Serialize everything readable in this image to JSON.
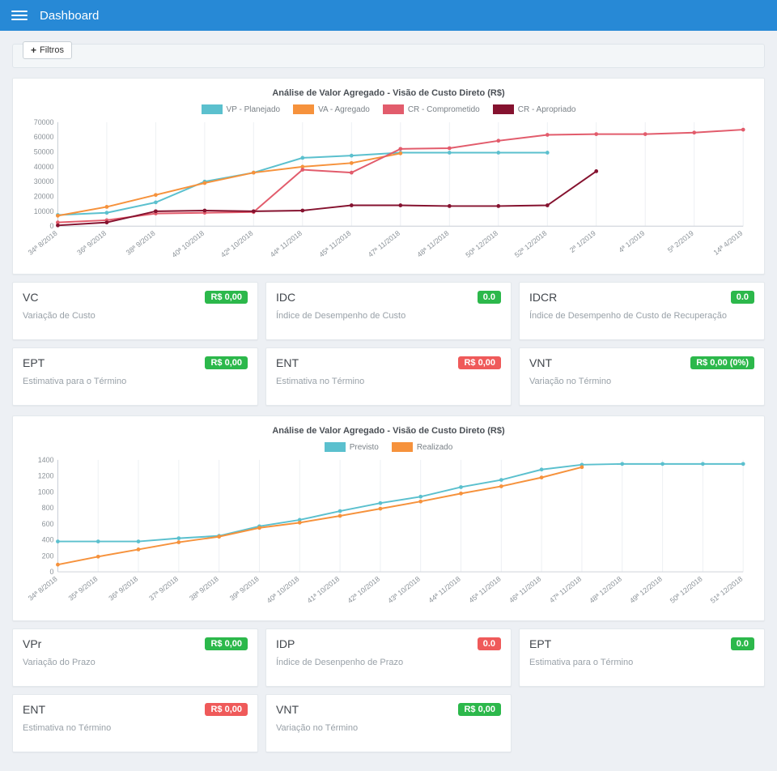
{
  "navbar": {
    "title": "Dashboard"
  },
  "filters": {
    "plus_icon": "+",
    "label": "Filtros"
  },
  "colors": {
    "navbar_blue": "#2789d6",
    "badge_green": "#2cb84b",
    "badge_red": "#ef5a5a"
  },
  "chart_data": [
    {
      "type": "line",
      "title": "Análise de Valor Agregado - Visão de Custo Direto (R$)",
      "xlabel": "",
      "ylabel": "",
      "ylim": [
        0,
        70000
      ],
      "ytick_step": 10000,
      "grid": "vertical",
      "legend_position": "top",
      "categories": [
        "34ª 8/2018",
        "36ª 9/2018",
        "38ª 9/2018",
        "40ª 10/2018",
        "42ª 10/2018",
        "44ª 11/2018",
        "45ª 11/2018",
        "47ª 11/2018",
        "48ª 11/2018",
        "50ª 12/2018",
        "52ª 12/2018",
        "2ª 1/2019",
        "4ª 1/2019",
        "5ª 2/2019",
        "14ª 4/2019"
      ],
      "series": [
        {
          "name": "VP - Planejado",
          "color": "#5bc0ce",
          "values": [
            7500,
            9000,
            16000,
            30000,
            36000,
            46000,
            47500,
            49500,
            49500,
            49500,
            49500,
            null,
            null,
            null,
            null
          ]
        },
        {
          "name": "VA - Agregado",
          "color": "#f6923c",
          "values": [
            7000,
            13000,
            21000,
            29000,
            36000,
            40000,
            42500,
            49000,
            null,
            null,
            null,
            null,
            null,
            null,
            null
          ]
        },
        {
          "name": "CR - Comprometido",
          "color": "#e25c6c",
          "values": [
            2500,
            4000,
            8500,
            9000,
            9500,
            38000,
            36000,
            52000,
            52500,
            57500,
            61500,
            62000,
            62000,
            63000,
            65000
          ]
        },
        {
          "name": "CR - Apropriado",
          "color": "#85122f",
          "values": [
            500,
            2500,
            10000,
            10500,
            10000,
            10500,
            14000,
            14000,
            13500,
            13500,
            14000,
            37000,
            null,
            null,
            null
          ]
        }
      ]
    },
    {
      "type": "line",
      "title": "Análise de Valor Agregado - Visão de Custo Direto (R$)",
      "xlabel": "",
      "ylabel": "",
      "ylim": [
        0,
        1400
      ],
      "ytick_step": 200,
      "grid": "vertical",
      "legend_position": "top",
      "categories": [
        "34ª 8/2018",
        "35ª 9/2018",
        "36ª 9/2018",
        "37ª 9/2018",
        "38ª 9/2018",
        "39ª 9/2018",
        "40ª 10/2018",
        "41ª 10/2018",
        "42ª 10/2018",
        "43ª 10/2018",
        "44ª 11/2018",
        "45ª 11/2018",
        "46ª 11/2018",
        "47ª 11/2018",
        "48ª 12/2018",
        "49ª 12/2018",
        "50ª 12/2018",
        "51ª 12/2018"
      ],
      "series": [
        {
          "name": "Previsto",
          "color": "#5bc0ce",
          "values": [
            380,
            380,
            380,
            420,
            450,
            570,
            650,
            760,
            860,
            940,
            1060,
            1150,
            1280,
            1340,
            1350,
            1350,
            1350,
            1350
          ]
        },
        {
          "name": "Realizado",
          "color": "#f6923c",
          "values": [
            90,
            190,
            280,
            370,
            440,
            550,
            615,
            700,
            790,
            880,
            980,
            1070,
            1180,
            1310,
            null,
            null,
            null,
            null
          ]
        }
      ]
    }
  ],
  "kpi_rows": [
    [
      {
        "code": "VC",
        "desc": "Variação de Custo",
        "badge": "R$ 0,00",
        "badge_color": "green"
      },
      {
        "code": "IDC",
        "desc": "Índice de Desempenho de Custo",
        "badge": "0.0",
        "badge_color": "green"
      },
      {
        "code": "IDCR",
        "desc": "Índice de Desempenho de Custo de Recuperação",
        "badge": "0.0",
        "badge_color": "green"
      }
    ],
    [
      {
        "code": "EPT",
        "desc": "Estimativa para o Término",
        "badge": "R$ 0,00",
        "badge_color": "green"
      },
      {
        "code": "ENT",
        "desc": "Estimativa no Término",
        "badge": "R$ 0,00",
        "badge_color": "red"
      },
      {
        "code": "VNT",
        "desc": "Variação no Término",
        "badge": "R$ 0,00 (0%)",
        "badge_color": "green"
      }
    ],
    [
      {
        "code": "VPr",
        "desc": "Variação do Prazo",
        "badge": "R$ 0,00",
        "badge_color": "green"
      },
      {
        "code": "IDP",
        "desc": "Índice de Desenpenho de Prazo",
        "badge": "0.0",
        "badge_color": "red"
      },
      {
        "code": "EPT",
        "desc": "Estimativa para o Término",
        "badge": "0.0",
        "badge_color": "green"
      }
    ],
    [
      {
        "code": "ENT",
        "desc": "Estimativa no Término",
        "badge": "R$ 0,00",
        "badge_color": "red"
      },
      {
        "code": "VNT",
        "desc": "Variação no Término",
        "badge": "R$ 0,00",
        "badge_color": "green"
      }
    ]
  ]
}
